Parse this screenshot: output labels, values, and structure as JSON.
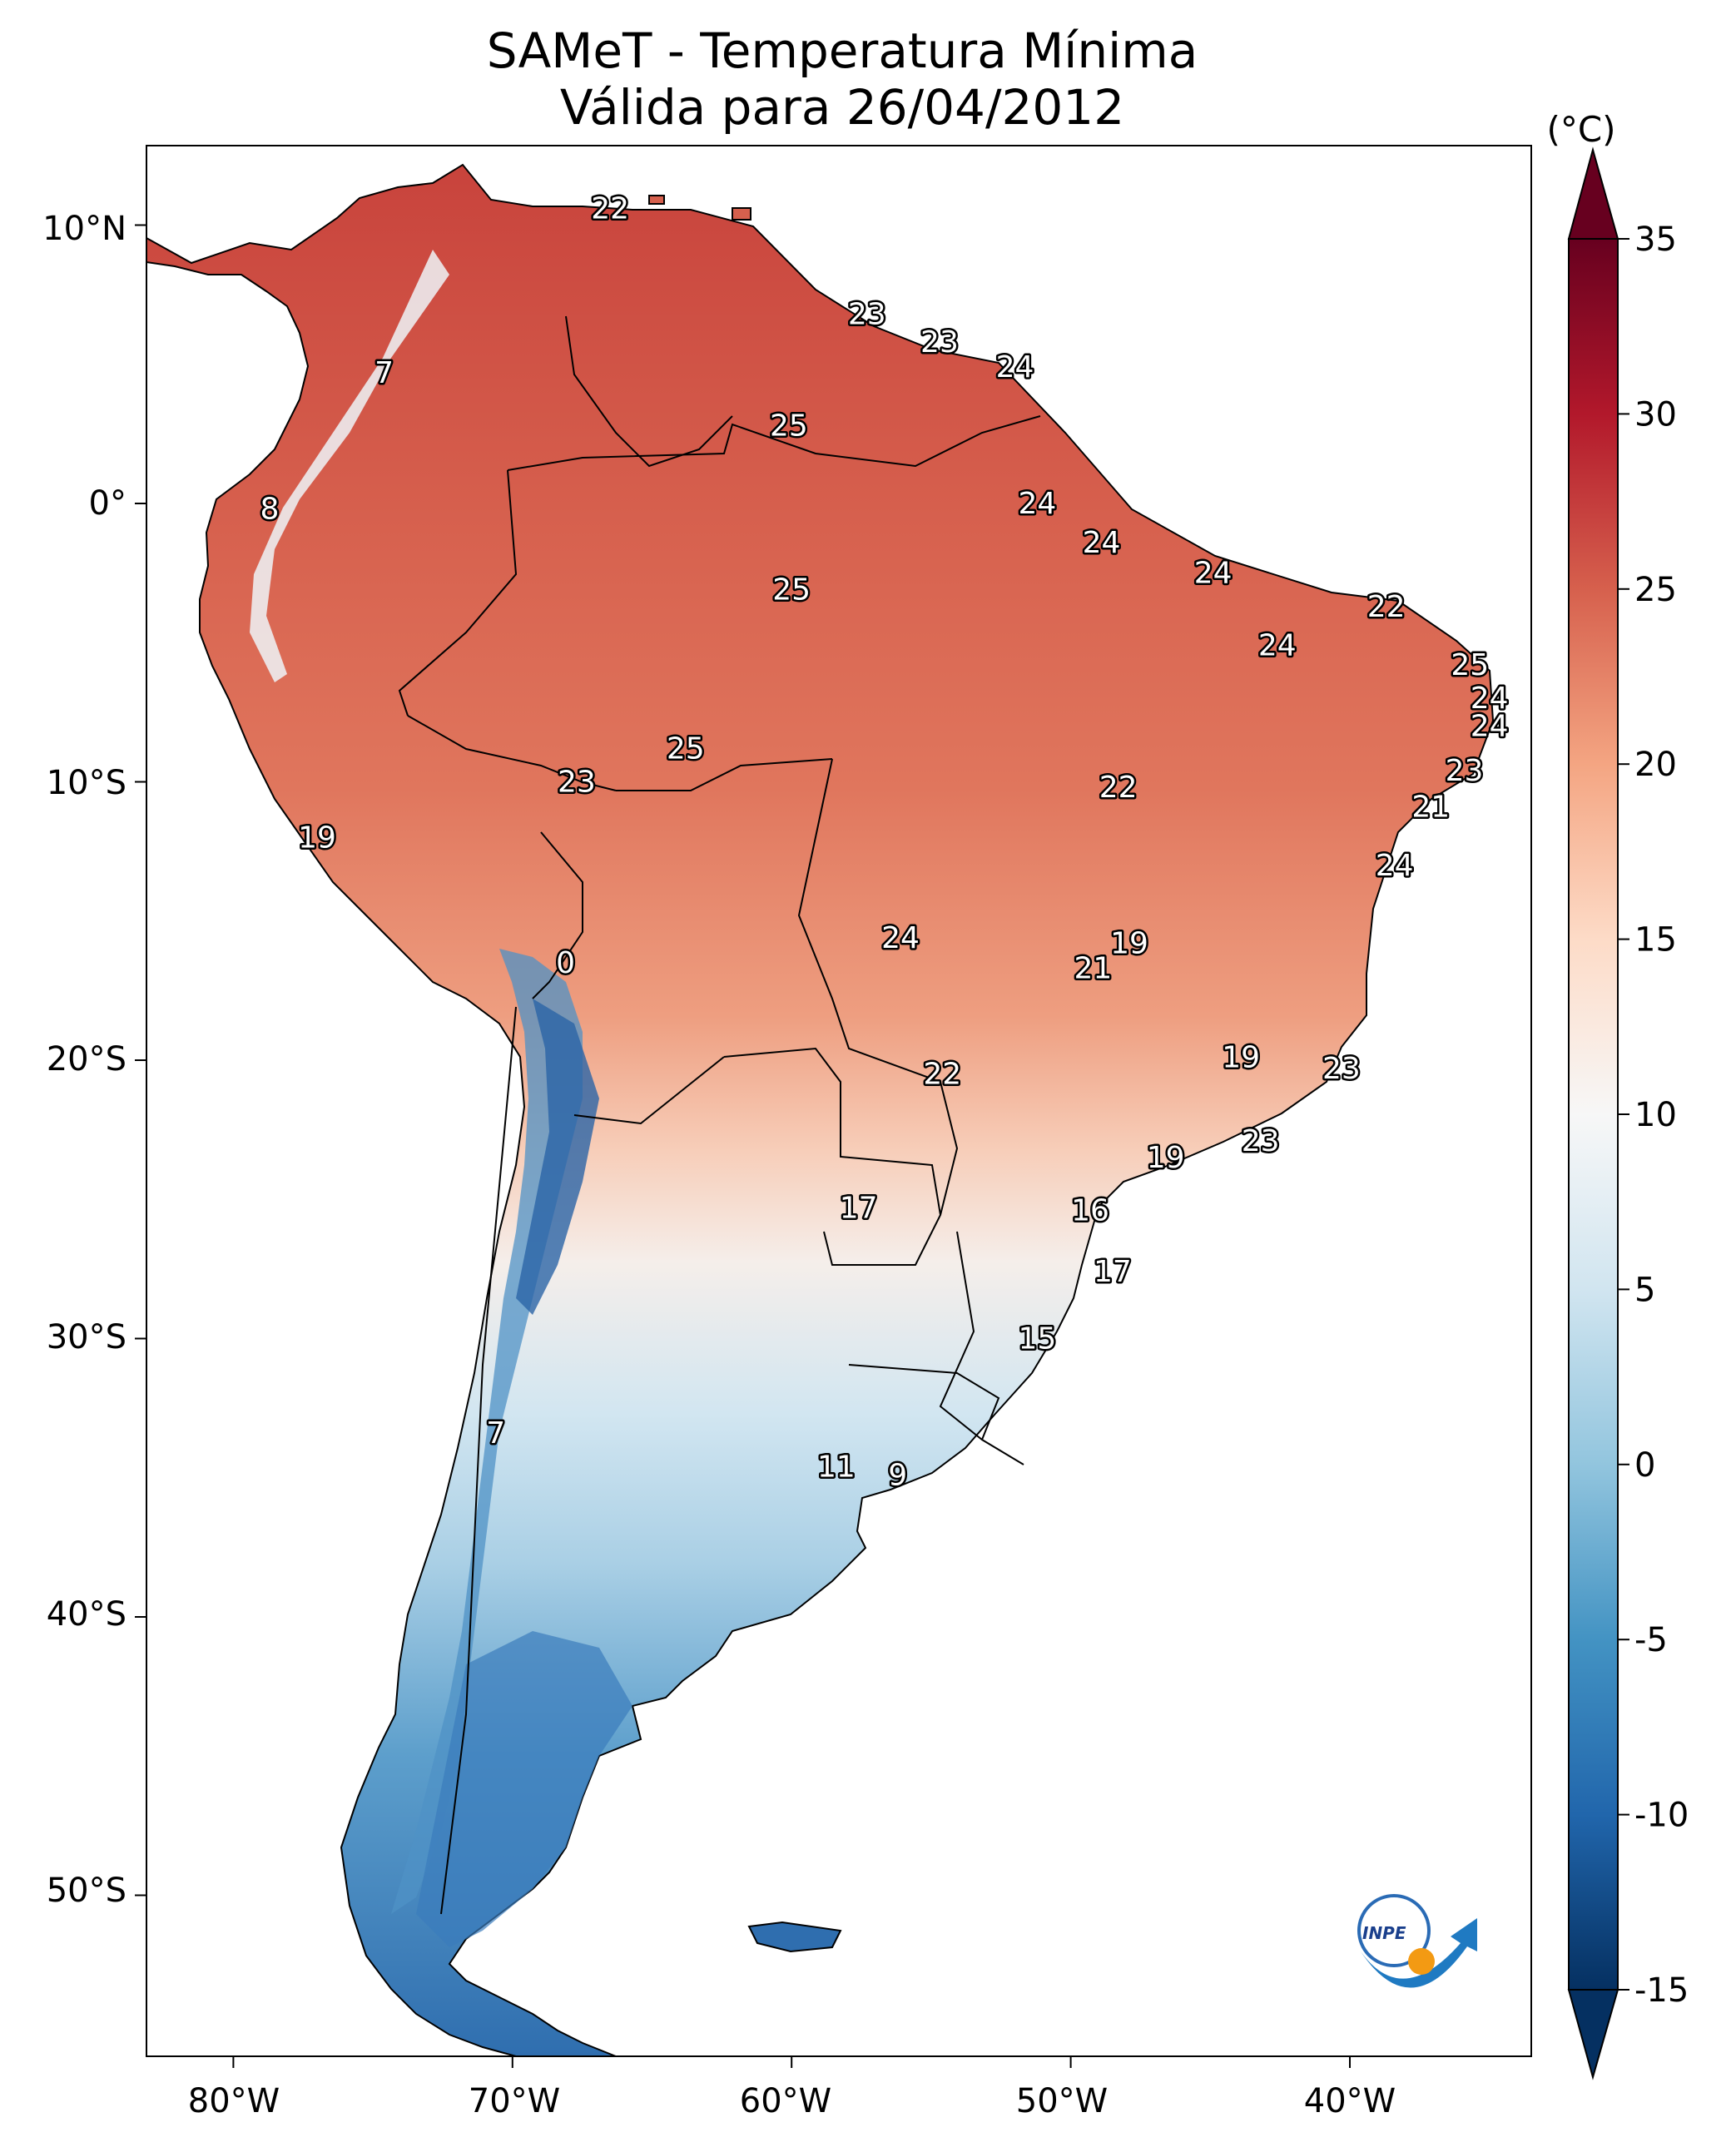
{
  "title": {
    "line1": "SAMeT - Temperatura Mínima",
    "line2": "Válida para 26/04/2012"
  },
  "map": {
    "longitude_ticks": [
      "80°W",
      "70°W",
      "60°W",
      "50°W",
      "40°W"
    ],
    "latitude_ticks": [
      "10°N",
      "0°",
      "10°S",
      "20°S",
      "30°S",
      "40°S",
      "50°S"
    ]
  },
  "colorbar": {
    "unit": "(°C)",
    "ticks": [
      "35",
      "30",
      "25",
      "20",
      "15",
      "10",
      "5",
      "0",
      "-5",
      "-10",
      "-15"
    ],
    "range": [
      -15,
      35
    ],
    "extend": "both",
    "colors": [
      "#053061",
      "#2166ac",
      "#4393c3",
      "#92c5de",
      "#d1e5f0",
      "#f7f7f7",
      "#fddbc7",
      "#f4a582",
      "#d6604d",
      "#b2182b",
      "#67001f"
    ]
  },
  "logo": {
    "text": "INPE"
  },
  "station_values": [
    {
      "lon": -66.5,
      "lat": 10.6,
      "value": "22"
    },
    {
      "lon": -74.6,
      "lat": 4.7,
      "value": "7"
    },
    {
      "lon": -78.7,
      "lat": -0.2,
      "value": "8"
    },
    {
      "lon": -57.3,
      "lat": 6.8,
      "value": "23"
    },
    {
      "lon": -54.7,
      "lat": 5.8,
      "value": "23"
    },
    {
      "lon": -52.0,
      "lat": 4.9,
      "value": "24"
    },
    {
      "lon": -60.1,
      "lat": 2.8,
      "value": "25"
    },
    {
      "lon": -51.2,
      "lat": 0.0,
      "value": "24"
    },
    {
      "lon": -48.9,
      "lat": -1.4,
      "value": "24"
    },
    {
      "lon": -44.9,
      "lat": -2.5,
      "value": "24"
    },
    {
      "lon": -38.7,
      "lat": -3.7,
      "value": "22"
    },
    {
      "lon": -42.6,
      "lat": -5.1,
      "value": "24"
    },
    {
      "lon": -35.7,
      "lat": -5.8,
      "value": "25"
    },
    {
      "lon": -35.0,
      "lat": -7.0,
      "value": "24"
    },
    {
      "lon": -35.0,
      "lat": -8.0,
      "value": "24"
    },
    {
      "lon": -35.9,
      "lat": -9.6,
      "value": "23"
    },
    {
      "lon": -37.1,
      "lat": -10.9,
      "value": "21"
    },
    {
      "lon": -38.4,
      "lat": -13.0,
      "value": "24"
    },
    {
      "lon": -60.0,
      "lat": -3.1,
      "value": "25"
    },
    {
      "lon": -63.8,
      "lat": -8.8,
      "value": "25"
    },
    {
      "lon": -67.7,
      "lat": -10.0,
      "value": "23"
    },
    {
      "lon": -77.0,
      "lat": -12.0,
      "value": "19"
    },
    {
      "lon": -48.3,
      "lat": -10.2,
      "value": "22"
    },
    {
      "lon": -68.1,
      "lat": -16.5,
      "value": "0"
    },
    {
      "lon": -56.1,
      "lat": -15.6,
      "value": "24"
    },
    {
      "lon": -47.9,
      "lat": -15.8,
      "value": "19"
    },
    {
      "lon": -49.2,
      "lat": -16.7,
      "value": "21"
    },
    {
      "lon": -43.9,
      "lat": -19.9,
      "value": "19"
    },
    {
      "lon": -40.3,
      "lat": -20.3,
      "value": "23"
    },
    {
      "lon": -54.6,
      "lat": -20.5,
      "value": "22"
    },
    {
      "lon": -43.2,
      "lat": -22.9,
      "value": "23"
    },
    {
      "lon": -46.6,
      "lat": -23.5,
      "value": "19"
    },
    {
      "lon": -57.6,
      "lat": -25.3,
      "value": "17"
    },
    {
      "lon": -49.3,
      "lat": -25.4,
      "value": "16"
    },
    {
      "lon": -48.5,
      "lat": -27.6,
      "value": "17"
    },
    {
      "lon": -51.2,
      "lat": -30.0,
      "value": "15"
    },
    {
      "lon": -70.6,
      "lat": -33.4,
      "value": "7"
    },
    {
      "lon": -58.4,
      "lat": -34.6,
      "value": "11"
    },
    {
      "lon": -56.2,
      "lat": -34.9,
      "value": "9"
    }
  ]
}
